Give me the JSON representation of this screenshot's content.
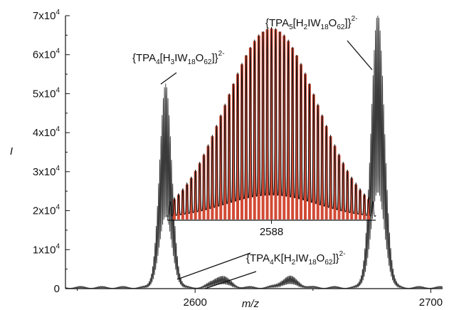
{
  "chart_data": {
    "type": "line",
    "xlabel": "m/z",
    "ylabel": "I",
    "xlim": [
      2545,
      2705
    ],
    "ylim": [
      0,
      70000
    ],
    "x_ticks": [
      {
        "value": 2600,
        "label": "2600"
      },
      {
        "value": 2700,
        "label": "2700"
      }
    ],
    "y_ticks": [
      {
        "value": 0,
        "base": "0",
        "exp": ""
      },
      {
        "value": 10000,
        "base": "1x10",
        "exp": "4"
      },
      {
        "value": 20000,
        "base": "2x10",
        "exp": "4"
      },
      {
        "value": 30000,
        "base": "3x10",
        "exp": "4"
      },
      {
        "value": 40000,
        "base": "4x10",
        "exp": "4"
      },
      {
        "value": 50000,
        "base": "5x10",
        "exp": "4"
      },
      {
        "value": 60000,
        "base": "6x10",
        "exp": "4"
      },
      {
        "value": 70000,
        "base": "7x10",
        "exp": "4"
      }
    ],
    "grid": false,
    "series": [
      {
        "color": "#3a3a3a",
        "peaks": [
          {
            "center": 2587.5,
            "height": 52000,
            "width": 2.6
          },
          {
            "center": 2611,
            "height": 3000,
            "width": 3.5
          },
          {
            "center": 2640,
            "height": 2800,
            "width": 3.5
          },
          {
            "center": 2677.5,
            "height": 70000,
            "width": 2.8
          }
        ],
        "baseline": 600
      }
    ],
    "inset": {
      "description": "expanded isotope pattern with simulated pattern",
      "experimental_color": "#111111",
      "simulated_color": "#d24a35",
      "x_tick": {
        "label": "2588"
      },
      "peak_count": 47,
      "max_relative": 1.0
    },
    "annotations": [
      {
        "id": "peak1",
        "parts": [
          "{TPA",
          "4",
          "[H",
          "3",
          "IW",
          "18",
          "O",
          "62",
          "]}",
          "2-"
        ]
      },
      {
        "id": "peak2",
        "parts": [
          "{TPA",
          "5",
          "[H",
          "2",
          "IW",
          "18",
          "O",
          "62",
          "]}",
          "2-"
        ]
      },
      {
        "id": "peak3",
        "parts": [
          "{TPA",
          "4",
          "K[H",
          "2",
          "IW",
          "18",
          "O",
          "62",
          "]}",
          "2-"
        ]
      }
    ]
  }
}
